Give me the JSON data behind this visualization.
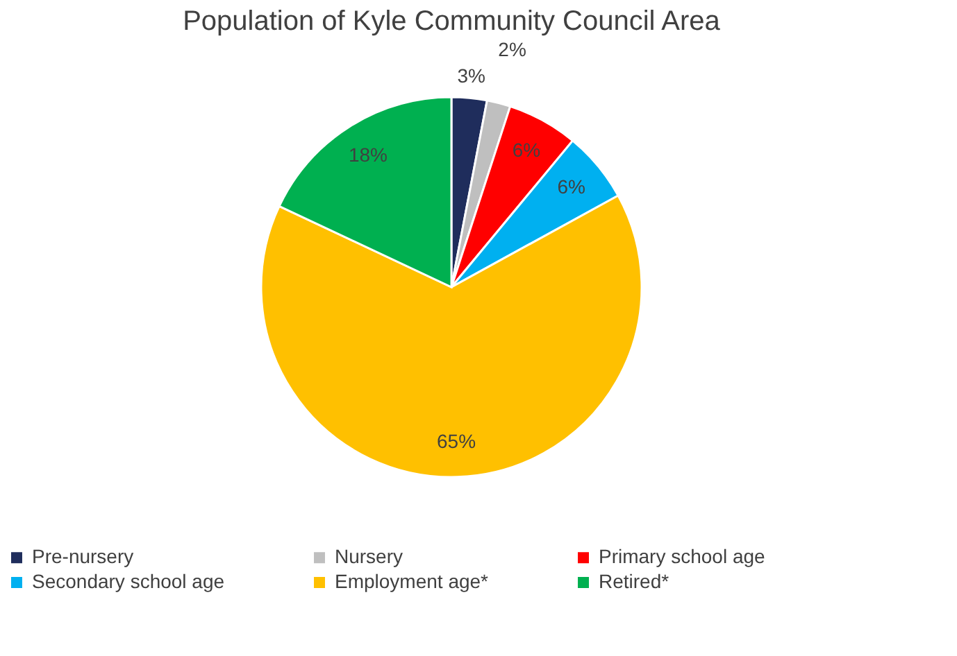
{
  "chart_data": {
    "type": "pie",
    "title": "Population of Kyle Community Council Area",
    "categories": [
      "Pre-nursery",
      "Nursery",
      "Primary school age",
      "Secondary school age",
      "Employment age*",
      "Retired*"
    ],
    "values": [
      3,
      2,
      6,
      6,
      65,
      18
    ],
    "colors": [
      "#1f2d5c",
      "#bfbfbf",
      "#ff0000",
      "#00b0f0",
      "#ffc000",
      "#00b050"
    ],
    "data_labels": true,
    "value_labels": [
      "3%",
      "2%",
      "6%",
      "6%",
      "65%",
      "18%"
    ],
    "legend": "bottom"
  }
}
